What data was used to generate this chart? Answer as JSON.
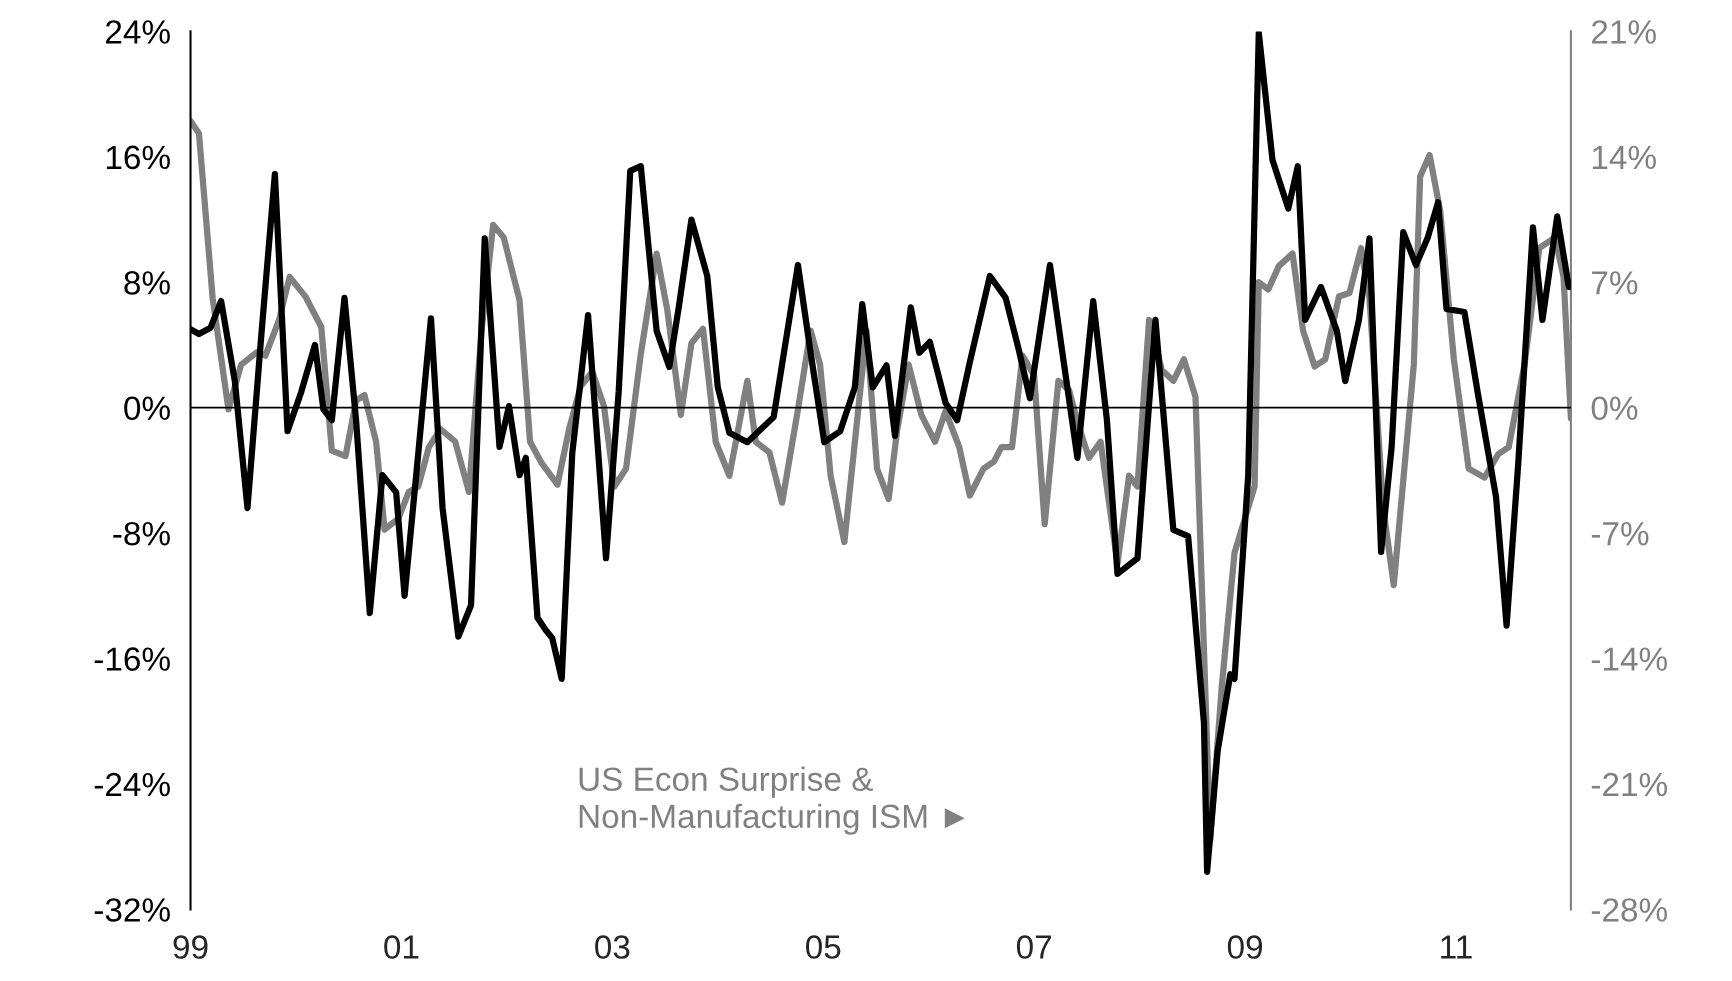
{
  "chart_data": {
    "type": "line",
    "xlim": [
      1999,
      2012.09
    ],
    "xticks": [
      {
        "value": 1999,
        "label": "99"
      },
      {
        "value": 2001,
        "label": "01"
      },
      {
        "value": 2003,
        "label": "03"
      },
      {
        "value": 2005,
        "label": "05"
      },
      {
        "value": 2007,
        "label": "07"
      },
      {
        "value": 2009,
        "label": "09"
      },
      {
        "value": 2011,
        "label": "11"
      }
    ],
    "ylim": [
      -32,
      24
    ],
    "yticks": [
      {
        "value": -32,
        "label": "-32%"
      },
      {
        "value": -24,
        "label": "-24%"
      },
      {
        "value": -16,
        "label": "-16%"
      },
      {
        "value": -8,
        "label": "-8%"
      },
      {
        "value": 0,
        "label": "0%"
      },
      {
        "value": 8,
        "label": "8%"
      },
      {
        "value": 16,
        "label": "16%"
      },
      {
        "value": 24,
        "label": "24%"
      }
    ],
    "y2lim": [
      -28,
      21
    ],
    "y2ticks": [
      {
        "value": -28,
        "label": "-28%"
      },
      {
        "value": -21,
        "label": "-21%"
      },
      {
        "value": -14,
        "label": "-14%"
      },
      {
        "value": -7,
        "label": "-7%"
      },
      {
        "value": 0,
        "label": "0%"
      },
      {
        "value": 7,
        "label": "7%"
      },
      {
        "value": 14,
        "label": "14%"
      },
      {
        "value": 21,
        "label": "21%"
      }
    ],
    "grid": false,
    "legend": false,
    "marker": "none",
    "ref_lines": [
      {
        "axis": "y",
        "value": 0,
        "color": "#000000"
      }
    ],
    "series": [
      {
        "color": "#000000",
        "x": [
          1999.0,
          1999.08,
          1999.19,
          1999.29,
          1999.42,
          1999.54,
          1999.67,
          1999.8,
          1999.92,
          2000.05,
          2000.18,
          2000.26,
          2000.34,
          2000.46,
          2000.57,
          2000.7,
          2000.82,
          2000.95,
          2001.03,
          2001.16,
          2001.28,
          2001.39,
          2001.54,
          2001.66,
          2001.79,
          2001.93,
          2002.02,
          2002.12,
          2002.18,
          2002.29,
          2002.37,
          2002.43,
          2002.52,
          2002.62,
          2002.77,
          2002.94,
          2003.06,
          2003.17,
          2003.27,
          2003.42,
          2003.54,
          2003.63,
          2003.75,
          2003.9,
          2004.0,
          2004.11,
          2004.28,
          2004.53,
          2004.76,
          2004.88,
          2005.01,
          2005.16,
          2005.3,
          2005.37,
          2005.47,
          2005.6,
          2005.68,
          2005.83,
          2005.91,
          2006.01,
          2006.16,
          2006.27,
          2006.39,
          2006.58,
          2006.73,
          2006.85,
          2006.96,
          2007.15,
          2007.27,
          2007.41,
          2007.56,
          2007.69,
          2007.79,
          2007.98,
          2008.15,
          2008.32,
          2008.46,
          2008.61,
          2008.64,
          2008.74,
          2008.86,
          2008.9,
          2009.03,
          2009.13,
          2009.26,
          2009.41,
          2009.5,
          2009.57,
          2009.72,
          2009.87,
          2009.95,
          2010.08,
          2010.18,
          2010.29,
          2010.39,
          2010.5,
          2010.62,
          2010.73,
          2010.83,
          2010.91,
          2011.08,
          2011.21,
          2011.38,
          2011.48,
          2011.59,
          2011.73,
          2011.82,
          2011.96,
          2012.07
        ],
        "values": [
          5.0,
          4.7,
          5.1,
          6.8,
          1.7,
          -6.4,
          4.5,
          14.9,
          -1.5,
          1.0,
          4.0,
          -0.1,
          -0.8,
          7.0,
          -0.8,
          -13.1,
          -4.3,
          -5.4,
          -12.0,
          -2.9,
          5.7,
          -6.4,
          -14.6,
          -12.6,
          10.8,
          -2.5,
          0.1,
          -4.3,
          -3.2,
          -13.4,
          -14.2,
          -14.7,
          -17.3,
          -2.9,
          5.9,
          -9.6,
          1.0,
          15.1,
          15.4,
          4.9,
          2.6,
          6.4,
          12.0,
          8.4,
          1.3,
          -1.6,
          -2.2,
          -0.6,
          9.1,
          3.5,
          -2.2,
          -1.5,
          1.3,
          6.6,
          1.3,
          2.7,
          -1.8,
          6.4,
          3.5,
          4.2,
          0.3,
          -0.8,
          2.9,
          8.4,
          7.0,
          3.8,
          0.6,
          9.1,
          3.4,
          -3.2,
          6.8,
          -0.8,
          -10.6,
          -9.6,
          5.6,
          -7.8,
          -8.2,
          -20.1,
          -29.6,
          -21.9,
          -17.0,
          -17.3,
          -4.3,
          23.9,
          15.8,
          12.7,
          15.4,
          5.6,
          7.7,
          4.9,
          1.7,
          5.6,
          10.8,
          -9.2,
          -2.5,
          11.2,
          9.1,
          10.8,
          13.1,
          6.3,
          6.1,
          0.8,
          -5.7,
          -13.9,
          -3.6,
          11.5,
          5.6,
          12.2,
          7.7
        ]
      },
      {
        "name": "US Econ Surprise &\nNon-Manufacturing ISM ►",
        "color": "#808080",
        "axis": "y2",
        "x": [
          1999.0,
          1999.08,
          1999.21,
          1999.36,
          1999.48,
          1999.63,
          1999.71,
          1999.84,
          1999.94,
          2000.09,
          2000.24,
          2000.34,
          2000.47,
          2000.57,
          2000.65,
          2000.76,
          2000.84,
          2000.97,
          2001.07,
          2001.16,
          2001.26,
          2001.37,
          2001.51,
          2001.64,
          2001.76,
          2001.87,
          2001.97,
          2002.12,
          2002.22,
          2002.33,
          2002.48,
          2002.59,
          2002.7,
          2002.81,
          2002.92,
          2003.02,
          2003.13,
          2003.27,
          2003.42,
          2003.52,
          2003.65,
          2003.75,
          2003.86,
          2003.98,
          2004.11,
          2004.28,
          2004.36,
          2004.49,
          2004.61,
          2004.76,
          2004.88,
          2004.97,
          2005.07,
          2005.2,
          2005.3,
          2005.41,
          2005.51,
          2005.62,
          2005.7,
          2005.81,
          2005.93,
          2006.06,
          2006.16,
          2006.29,
          2006.39,
          2006.52,
          2006.62,
          2006.69,
          2006.79,
          2006.89,
          2007.0,
          2007.1,
          2007.23,
          2007.33,
          2007.42,
          2007.52,
          2007.63,
          2007.79,
          2007.9,
          2007.98,
          2008.09,
          2008.21,
          2008.32,
          2008.42,
          2008.53,
          2008.67,
          2008.78,
          2008.9,
          2009.09,
          2009.13,
          2009.22,
          2009.32,
          2009.45,
          2009.55,
          2009.66,
          2009.76,
          2009.89,
          2009.99,
          2010.1,
          2010.18,
          2010.31,
          2010.41,
          2010.6,
          2010.66,
          2010.75,
          2010.85,
          2010.98,
          2011.12,
          2011.27,
          2011.4,
          2011.5,
          2011.65,
          2011.79,
          2011.94,
          2012.02,
          2012.09
        ],
        "values": [
          16.0,
          15.3,
          6.1,
          -0.1,
          2.4,
          3.1,
          2.9,
          4.9,
          7.3,
          6.2,
          4.5,
          -2.4,
          -2.7,
          0.4,
          0.7,
          -1.9,
          -6.8,
          -6.2,
          -4.7,
          -4.4,
          -2.2,
          -1.2,
          -1.9,
          -4.7,
          4.3,
          10.2,
          9.5,
          6.0,
          -1.9,
          -3.1,
          -4.3,
          -1.2,
          1.2,
          2.0,
          0.1,
          -4.4,
          -3.4,
          3.0,
          8.6,
          5.5,
          -0.4,
          3.6,
          4.4,
          -1.9,
          -3.8,
          1.5,
          -1.9,
          -2.5,
          -5.3,
          -0.1,
          4.3,
          2.4,
          -3.8,
          -7.5,
          -1.9,
          4.3,
          -3.4,
          -5.1,
          -1.3,
          2.4,
          -0.4,
          -1.9,
          -0.2,
          -2.2,
          -4.9,
          -3.4,
          -3.0,
          -2.2,
          -2.2,
          2.9,
          1.8,
          -6.5,
          1.5,
          1.0,
          -1.0,
          -2.8,
          -1.9,
          -8.7,
          -3.8,
          -4.4,
          4.9,
          2.1,
          1.5,
          2.7,
          0.6,
          -24.1,
          -15.5,
          -8.1,
          -4.4,
          7.0,
          6.6,
          7.9,
          8.6,
          4.3,
          2.3,
          2.7,
          6.2,
          6.4,
          8.9,
          6.1,
          -5.6,
          -9.9,
          2.4,
          12.9,
          14.1,
          11.0,
          2.7,
          -3.4,
          -3.9,
          -2.6,
          -2.2,
          2.4,
          8.9,
          9.5,
          7.3,
          -0.6
        ]
      }
    ]
  }
}
